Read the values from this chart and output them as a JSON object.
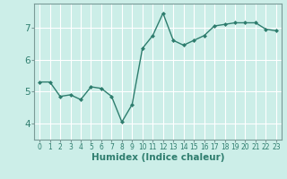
{
  "x": [
    0,
    1,
    2,
    3,
    4,
    5,
    6,
    7,
    8,
    9,
    10,
    11,
    12,
    13,
    14,
    15,
    16,
    17,
    18,
    19,
    20,
    21,
    22,
    23
  ],
  "y": [
    5.3,
    5.3,
    4.85,
    4.9,
    4.75,
    5.15,
    5.1,
    4.85,
    4.05,
    4.6,
    6.35,
    6.75,
    7.45,
    6.6,
    6.45,
    6.6,
    6.75,
    7.05,
    7.1,
    7.15,
    7.15,
    7.15,
    6.95,
    6.9
  ],
  "line_color": "#2e7d6e",
  "marker": "D",
  "marker_size": 2.0,
  "linewidth": 1.0,
  "xlabel": "Humidex (Indice chaleur)",
  "ylim": [
    3.5,
    7.75
  ],
  "xlim": [
    -0.5,
    23.5
  ],
  "yticks": [
    4,
    5,
    6,
    7
  ],
  "xticks": [
    0,
    1,
    2,
    3,
    4,
    5,
    6,
    7,
    8,
    9,
    10,
    11,
    12,
    13,
    14,
    15,
    16,
    17,
    18,
    19,
    20,
    21,
    22,
    23
  ],
  "bg_color": "#cceee8",
  "grid_color": "#ffffff",
  "spine_color": "#7a9a97",
  "xlabel_fontsize": 7.5,
  "ytick_fontsize": 7.5,
  "xtick_fontsize": 5.5
}
